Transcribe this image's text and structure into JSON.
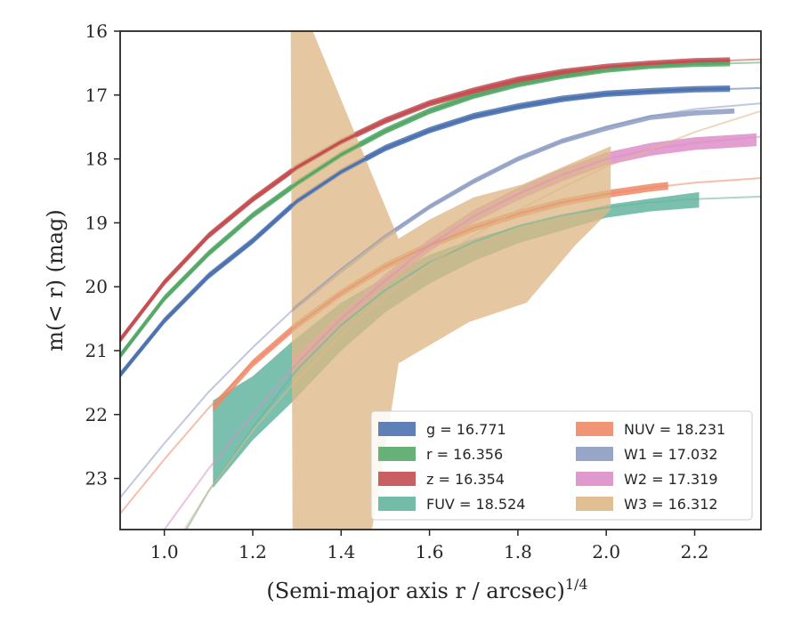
{
  "chart_data": {
    "type": "line",
    "xlabel": "(Semi-major axis r / arcsec)",
    "xlabel_exponent": "1/4",
    "ylabel": "m(< r) (mag)",
    "xlim": [
      0.9,
      2.35
    ],
    "ylim": [
      23.8,
      16.0
    ],
    "y_inverted": true,
    "grid": false,
    "legend_position": "lower right",
    "legend_columns": 2,
    "x_ticks": [
      1.0,
      1.2,
      1.4,
      1.6,
      1.8,
      2.0,
      2.2
    ],
    "x_tick_labels": [
      "1.0",
      "1.2",
      "1.4",
      "1.6",
      "1.8",
      "2.0",
      "2.2"
    ],
    "y_ticks": [
      16,
      17,
      18,
      19,
      20,
      21,
      22,
      23
    ],
    "y_tick_labels": [
      "16",
      "17",
      "18",
      "19",
      "20",
      "21",
      "22",
      "23"
    ],
    "series": [
      {
        "name": "g",
        "legend_label": "g = 16.771",
        "color": "#4c72b0",
        "fit_x": [
          0.9,
          1.0,
          1.1,
          1.2,
          1.3,
          1.4,
          1.5,
          1.6,
          1.7,
          1.8,
          1.9,
          2.0,
          2.1,
          2.2,
          2.35
        ],
        "fit_y": [
          21.4,
          20.55,
          19.85,
          19.3,
          18.68,
          18.22,
          17.85,
          17.57,
          17.35,
          17.2,
          17.08,
          17.0,
          16.95,
          16.92,
          16.89
        ],
        "band_x": [
          0.9,
          1.0,
          1.1,
          1.2,
          1.3,
          1.4,
          1.5,
          1.6,
          1.7,
          1.8,
          1.9,
          2.0,
          2.1,
          2.2,
          2.28
        ],
        "band_y": [
          21.38,
          20.53,
          19.83,
          19.28,
          18.66,
          18.2,
          17.83,
          17.55,
          17.33,
          17.18,
          17.06,
          16.98,
          16.94,
          16.91,
          16.9
        ],
        "band_width": 0.05
      },
      {
        "name": "r",
        "legend_label": "r = 16.356",
        "color": "#55a868",
        "fit_x": [
          0.9,
          1.0,
          1.1,
          1.2,
          1.3,
          1.4,
          1.5,
          1.6,
          1.7,
          1.8,
          1.9,
          2.0,
          2.1,
          2.2,
          2.35
        ],
        "fit_y": [
          21.1,
          20.2,
          19.5,
          18.9,
          18.4,
          17.95,
          17.58,
          17.27,
          17.03,
          16.85,
          16.72,
          16.62,
          16.56,
          16.52,
          16.49
        ],
        "band_x": [
          0.9,
          1.0,
          1.1,
          1.2,
          1.3,
          1.4,
          1.5,
          1.6,
          1.7,
          1.8,
          1.9,
          2.0,
          2.1,
          2.2,
          2.28
        ],
        "band_y": [
          21.08,
          20.18,
          19.48,
          18.88,
          18.38,
          17.93,
          17.56,
          17.25,
          17.01,
          16.83,
          16.7,
          16.6,
          16.54,
          16.51,
          16.5
        ],
        "band_width": 0.05
      },
      {
        "name": "z",
        "legend_label": "z = 16.354",
        "color": "#c44e52",
        "fit_x": [
          0.9,
          1.0,
          1.1,
          1.2,
          1.3,
          1.4,
          1.5,
          1.6,
          1.7,
          1.8,
          1.9,
          2.0,
          2.1,
          2.2,
          2.35
        ],
        "fit_y": [
          20.85,
          19.95,
          19.22,
          18.65,
          18.15,
          17.75,
          17.42,
          17.15,
          16.95,
          16.78,
          16.66,
          16.58,
          16.52,
          16.48,
          16.44
        ],
        "band_x": [
          0.9,
          1.0,
          1.1,
          1.2,
          1.3,
          1.4,
          1.5,
          1.6,
          1.7,
          1.8,
          1.9,
          2.0,
          2.1,
          2.2,
          2.28
        ],
        "band_y": [
          20.83,
          19.93,
          19.2,
          18.63,
          18.13,
          17.73,
          17.4,
          17.13,
          16.93,
          16.76,
          16.64,
          16.56,
          16.51,
          16.47,
          16.46
        ],
        "band_width": 0.05
      },
      {
        "name": "FUV",
        "legend_label": "FUV = 18.524",
        "color": "#64b5a0",
        "fit_x": [
          1.0,
          1.1,
          1.2,
          1.3,
          1.4,
          1.5,
          1.6,
          1.7,
          1.8,
          1.9,
          2.0,
          2.1,
          2.2,
          2.35
        ],
        "fit_y": [
          24.4,
          23.2,
          22.2,
          21.3,
          20.6,
          20.05,
          19.62,
          19.3,
          19.05,
          18.88,
          18.76,
          18.68,
          18.63,
          18.59
        ],
        "band_x": [
          1.11,
          1.2,
          1.29,
          1.4,
          1.5,
          1.6,
          1.7,
          1.8,
          1.9,
          2.0,
          2.1,
          2.21
        ],
        "band_lower": [
          23.15,
          22.4,
          21.8,
          21.0,
          20.4,
          19.95,
          19.6,
          19.32,
          19.12,
          18.92,
          18.82,
          18.76
        ],
        "band_upper": [
          21.78,
          21.4,
          20.85,
          20.25,
          19.85,
          19.5,
          19.25,
          19.05,
          18.88,
          18.72,
          18.62,
          18.52
        ]
      },
      {
        "name": "NUV",
        "legend_label": "NUV = 18.231",
        "color": "#ee8866",
        "fit_x": [
          0.9,
          1.0,
          1.1,
          1.2,
          1.3,
          1.4,
          1.5,
          1.6,
          1.7,
          1.8,
          1.9,
          2.0,
          2.1,
          2.2,
          2.35
        ],
        "fit_y": [
          23.55,
          22.7,
          21.9,
          21.2,
          20.6,
          20.1,
          19.68,
          19.35,
          19.08,
          18.86,
          18.68,
          18.55,
          18.45,
          18.37,
          18.3
        ],
        "band_x": [
          1.11,
          1.2,
          1.3,
          1.4,
          1.5,
          1.6,
          1.7,
          1.8,
          1.9,
          2.0,
          2.1,
          2.14
        ],
        "band_y": [
          21.9,
          21.2,
          20.6,
          20.1,
          19.68,
          19.35,
          19.08,
          18.86,
          18.68,
          18.55,
          18.45,
          18.42
        ],
        "band_width": 0.06
      },
      {
        "name": "W1",
        "legend_label": "W1 = 17.032",
        "color": "#8c9bc2",
        "fit_x": [
          0.9,
          1.0,
          1.1,
          1.2,
          1.3,
          1.4,
          1.5,
          1.6,
          1.7,
          1.8,
          1.9,
          2.0,
          2.1,
          2.2,
          2.35
        ],
        "fit_y": [
          23.3,
          22.45,
          21.65,
          20.95,
          20.3,
          19.72,
          19.2,
          18.75,
          18.35,
          18.0,
          17.72,
          17.5,
          17.33,
          17.22,
          17.13
        ],
        "band_x": [
          1.29,
          1.4,
          1.5,
          1.6,
          1.7,
          1.8,
          1.9,
          2.0,
          2.1,
          2.2,
          2.29
        ],
        "band_y": [
          20.36,
          19.75,
          19.22,
          18.75,
          18.35,
          18.0,
          17.72,
          17.52,
          17.35,
          17.28,
          17.25
        ],
        "band_width": 0.04
      },
      {
        "name": "W2",
        "legend_label": "W2 = 17.319",
        "color": "#dd8ec8",
        "fit_x": [
          0.9,
          1.0,
          1.1,
          1.2,
          1.3,
          1.4,
          1.5,
          1.6,
          1.7,
          1.8,
          1.9,
          2.0,
          2.1,
          2.2,
          2.35
        ],
        "fit_y": [
          24.8,
          23.8,
          22.85,
          22.0,
          21.2,
          20.5,
          19.9,
          19.35,
          18.9,
          18.55,
          18.25,
          18.0,
          17.85,
          17.75,
          17.65
        ],
        "band_x": [
          1.29,
          1.4,
          1.5,
          1.6,
          1.7,
          1.8,
          1.9,
          2.0,
          2.1,
          2.2,
          2.34
        ],
        "band_y": [
          21.2,
          20.5,
          19.9,
          19.35,
          18.9,
          18.55,
          18.25,
          18.0,
          17.85,
          17.76,
          17.7
        ],
        "band_width": 0.1
      },
      {
        "name": "W3",
        "legend_label": "W3 = 16.312",
        "color": "#deb887",
        "fit_x": [
          0.9,
          1.0,
          1.1,
          1.2,
          1.3,
          1.4,
          1.5,
          1.6,
          1.7,
          1.8,
          1.9,
          2.0,
          2.1,
          2.2,
          2.35
        ],
        "fit_y": [
          25.5,
          24.3,
          23.2,
          22.25,
          21.45,
          20.75,
          20.15,
          19.65,
          19.2,
          18.8,
          18.45,
          18.12,
          17.85,
          17.58,
          17.25
        ],
        "band_x": [
          1.286,
          1.33,
          1.53,
          1.6,
          1.7,
          1.81,
          2.01,
          2.01,
          1.93,
          1.82,
          1.69,
          1.53,
          1.51,
          1.47,
          1.29
        ],
        "band_y": [
          16.0,
          15.9,
          19.25,
          18.95,
          18.6,
          18.4,
          17.8,
          18.8,
          19.35,
          20.25,
          20.55,
          21.2,
          22.1,
          23.8,
          23.8
        ]
      }
    ]
  }
}
